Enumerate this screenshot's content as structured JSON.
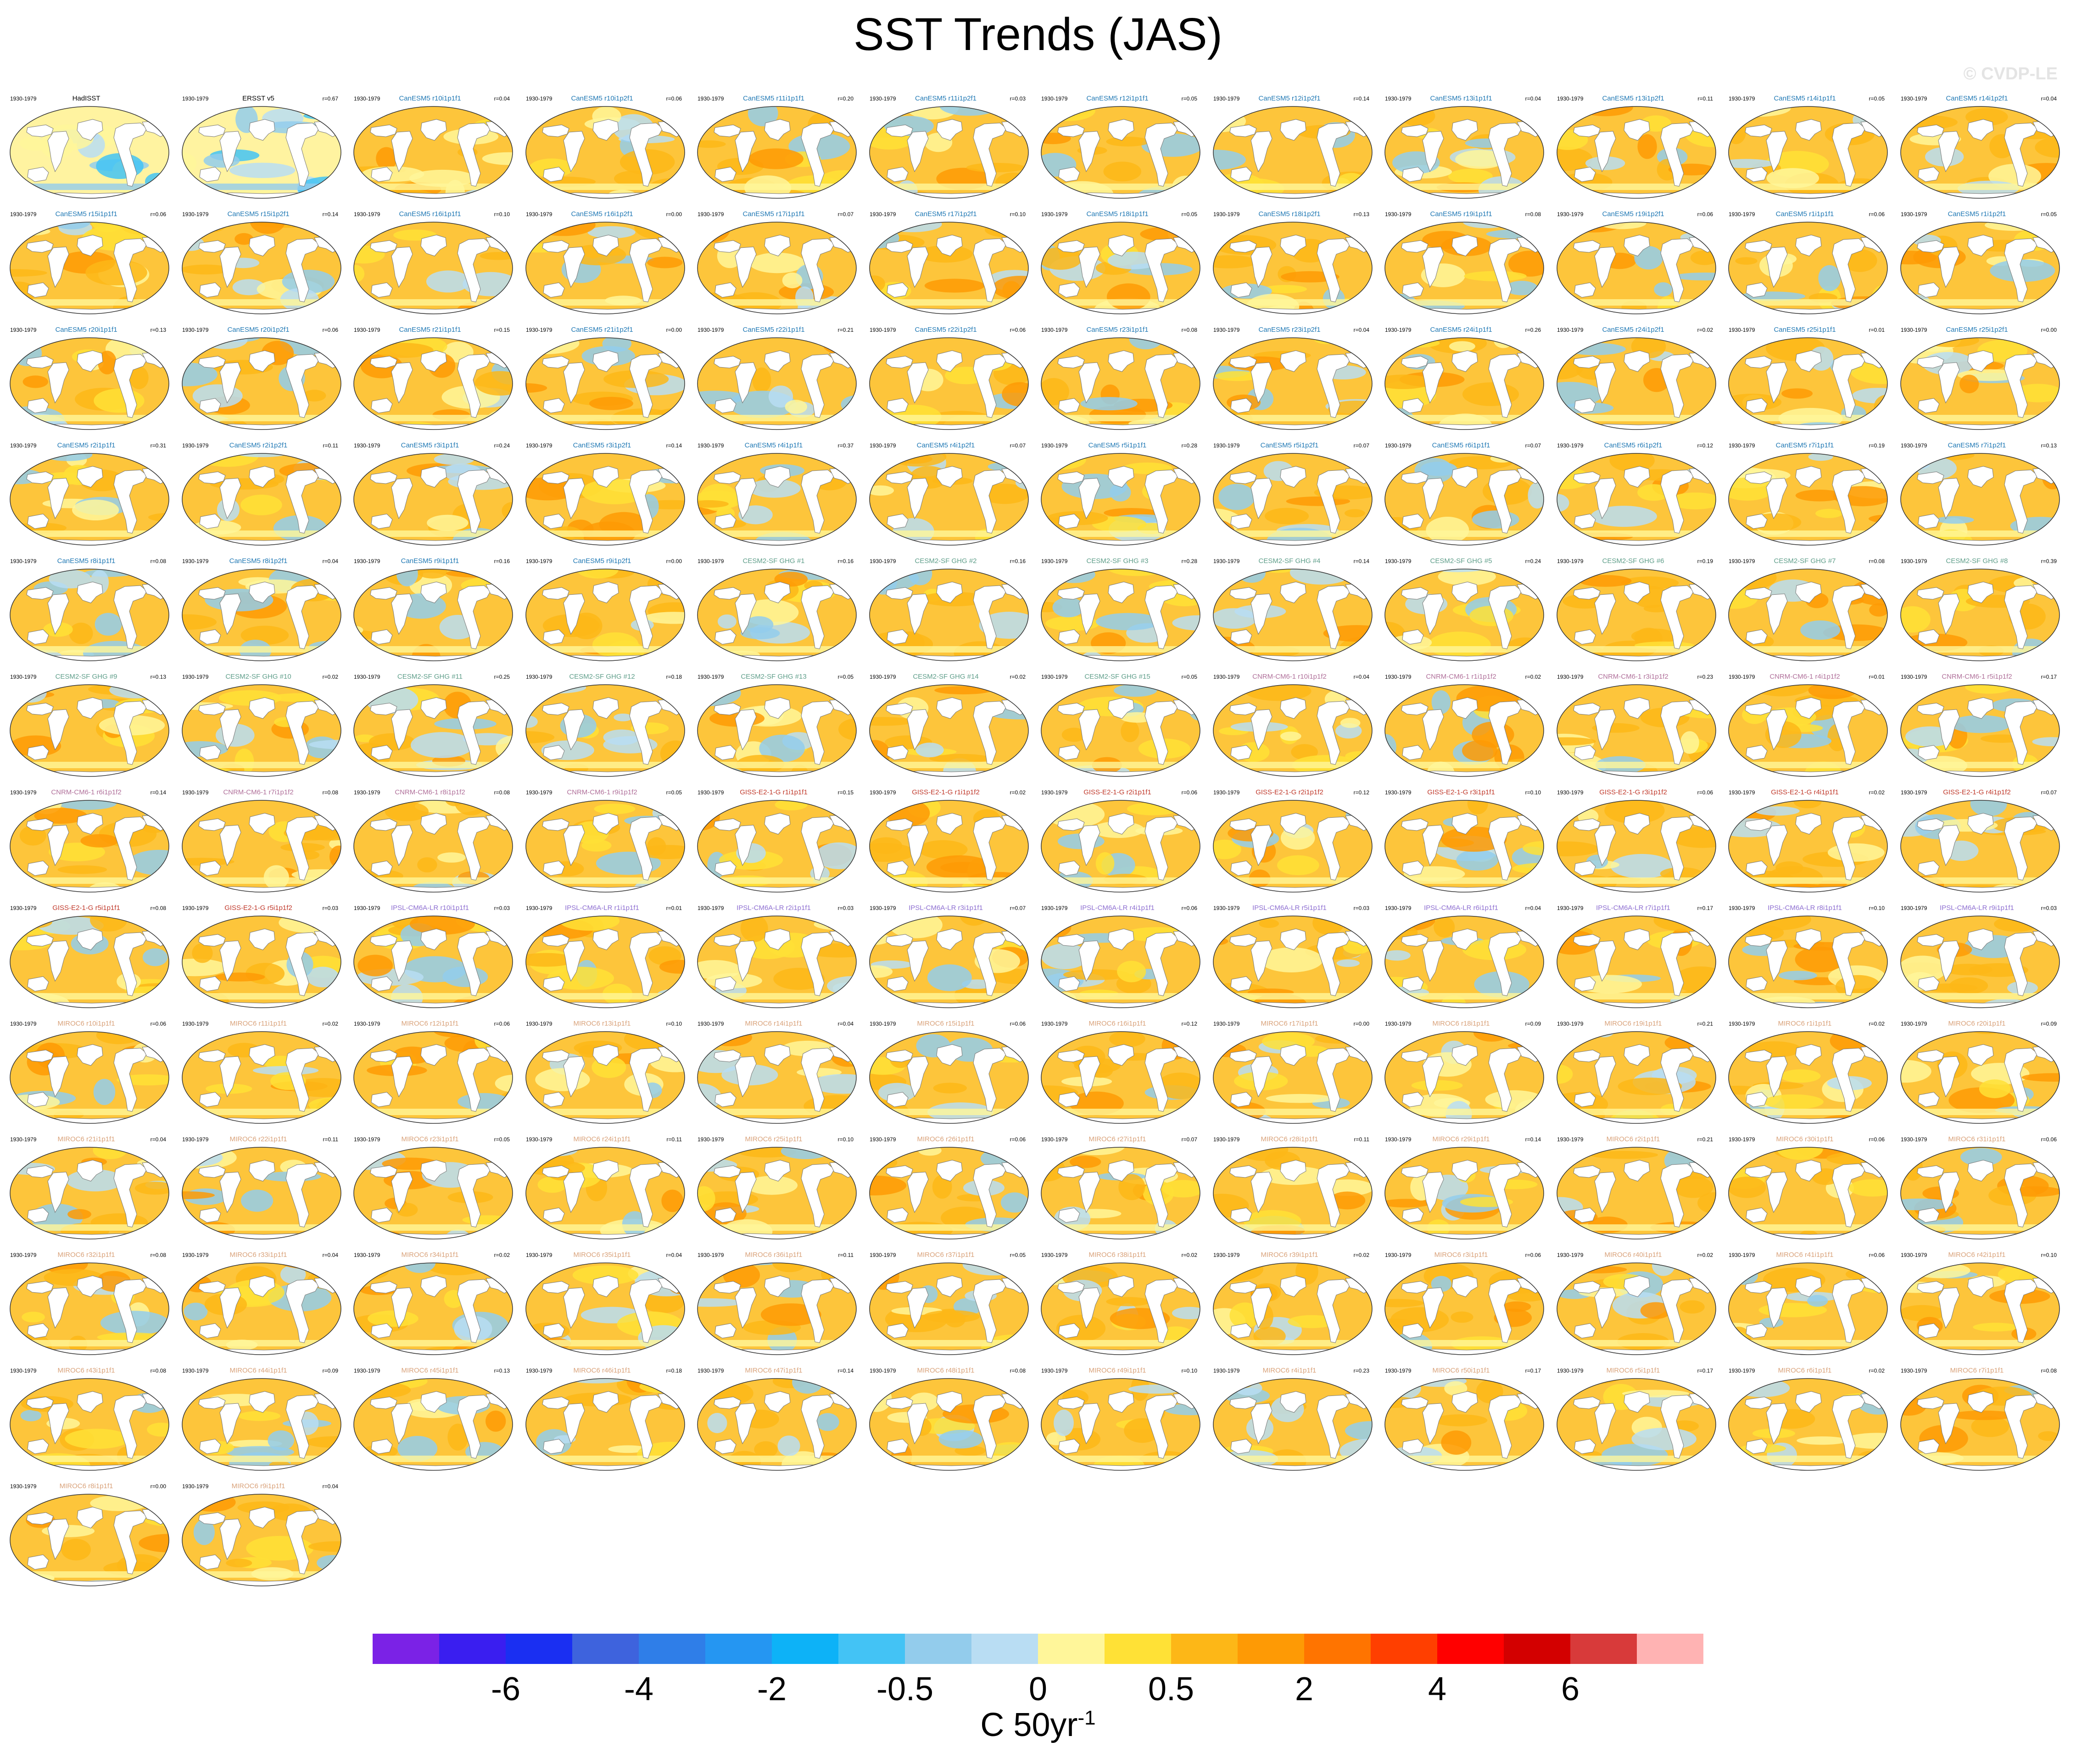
{
  "title": "SST Trends (JAS)",
  "watermark": "© CVDP-LE",
  "period": "1930-1979",
  "colorbar": {
    "labels": [
      "-6",
      "-4",
      "-2",
      "-0.5",
      "0",
      "0.5",
      "2",
      "4",
      "6"
    ],
    "colors": [
      "#7b22e6",
      "#3a1ef0",
      "#1a2ff2",
      "#3e63dd",
      "#2f7ee8",
      "#2596f2",
      "#0db2f7",
      "#43c3f5",
      "#93ccec",
      "#b9ddf3",
      "#fff69a",
      "#ffe136",
      "#fdb717",
      "#fe9a05",
      "#ff7400",
      "#ff3f00",
      "#ff0000",
      "#d30000",
      "#d83a3a",
      "#ffb3b3"
    ],
    "units": "C 50yr",
    "units_sup": "-1"
  },
  "panels": [
    {
      "name": "HadISST",
      "r": "",
      "color": "#000000"
    },
    {
      "name": "ERSST v5",
      "r": "r=0.67",
      "color": "#000000"
    },
    {
      "name": "CanESM5 r10i1p1f1",
      "r": "r=0.04",
      "color": "#1f78b4"
    },
    {
      "name": "CanESM5 r10i1p2f1",
      "r": "r=0.06",
      "color": "#1f78b4"
    },
    {
      "name": "CanESM5 r11i1p1f1",
      "r": "r=0.20",
      "color": "#1f78b4"
    },
    {
      "name": "CanESM5 r11i1p2f1",
      "r": "r=0.03",
      "color": "#1f78b4"
    },
    {
      "name": "CanESM5 r12i1p1f1",
      "r": "r=0.05",
      "color": "#1f78b4"
    },
    {
      "name": "CanESM5 r12i1p2f1",
      "r": "r=0.14",
      "color": "#1f78b4"
    },
    {
      "name": "CanESM5 r13i1p1f1",
      "r": "r=0.04",
      "color": "#1f78b4"
    },
    {
      "name": "CanESM5 r13i1p2f1",
      "r": "r=0.11",
      "color": "#1f78b4"
    },
    {
      "name": "CanESM5 r14i1p1f1",
      "r": "r=0.05",
      "color": "#1f78b4"
    },
    {
      "name": "CanESM5 r14i1p2f1",
      "r": "r=0.04",
      "color": "#1f78b4"
    },
    {
      "name": "CanESM5 r15i1p1f1",
      "r": "r=0.06",
      "color": "#1f78b4"
    },
    {
      "name": "CanESM5 r15i1p2f1",
      "r": "r=0.14",
      "color": "#1f78b4"
    },
    {
      "name": "CanESM5 r16i1p1f1",
      "r": "r=0.10",
      "color": "#1f78b4"
    },
    {
      "name": "CanESM5 r16i1p2f1",
      "r": "r=0.00",
      "color": "#1f78b4"
    },
    {
      "name": "CanESM5 r17i1p1f1",
      "r": "r=0.07",
      "color": "#1f78b4"
    },
    {
      "name": "CanESM5 r17i1p2f1",
      "r": "r=0.10",
      "color": "#1f78b4"
    },
    {
      "name": "CanESM5 r18i1p1f1",
      "r": "r=0.05",
      "color": "#1f78b4"
    },
    {
      "name": "CanESM5 r18i1p2f1",
      "r": "r=0.13",
      "color": "#1f78b4"
    },
    {
      "name": "CanESM5 r19i1p1f1",
      "r": "r=0.08",
      "color": "#1f78b4"
    },
    {
      "name": "CanESM5 r19i1p2f1",
      "r": "r=0.06",
      "color": "#1f78b4"
    },
    {
      "name": "CanESM5 r1i1p1f1",
      "r": "r=0.06",
      "color": "#1f78b4"
    },
    {
      "name": "CanESM5 r1i1p2f1",
      "r": "r=0.05",
      "color": "#1f78b4"
    },
    {
      "name": "CanESM5 r20i1p1f1",
      "r": "r=0.13",
      "color": "#1f78b4"
    },
    {
      "name": "CanESM5 r20i1p2f1",
      "r": "r=0.06",
      "color": "#1f78b4"
    },
    {
      "name": "CanESM5 r21i1p1f1",
      "r": "r=0.15",
      "color": "#1f78b4"
    },
    {
      "name": "CanESM5 r21i1p2f1",
      "r": "r=0.00",
      "color": "#1f78b4"
    },
    {
      "name": "CanESM5 r22i1p1f1",
      "r": "r=0.21",
      "color": "#1f78b4"
    },
    {
      "name": "CanESM5 r22i1p2f1",
      "r": "r=0.06",
      "color": "#1f78b4"
    },
    {
      "name": "CanESM5 r23i1p1f1",
      "r": "r=0.08",
      "color": "#1f78b4"
    },
    {
      "name": "CanESM5 r23i1p2f1",
      "r": "r=0.04",
      "color": "#1f78b4"
    },
    {
      "name": "CanESM5 r24i1p1f1",
      "r": "r=0.26",
      "color": "#1f78b4"
    },
    {
      "name": "CanESM5 r24i1p2f1",
      "r": "r=0.02",
      "color": "#1f78b4"
    },
    {
      "name": "CanESM5 r25i1p1f1",
      "r": "r=0.01",
      "color": "#1f78b4"
    },
    {
      "name": "CanESM5 r25i1p2f1",
      "r": "r=0.00",
      "color": "#1f78b4"
    },
    {
      "name": "CanESM5 r2i1p1f1",
      "r": "r=0.31",
      "color": "#1f78b4"
    },
    {
      "name": "CanESM5 r2i1p2f1",
      "r": "r=0.11",
      "color": "#1f78b4"
    },
    {
      "name": "CanESM5 r3i1p1f1",
      "r": "r=0.24",
      "color": "#1f78b4"
    },
    {
      "name": "CanESM5 r3i1p2f1",
      "r": "r=0.14",
      "color": "#1f78b4"
    },
    {
      "name": "CanESM5 r4i1p1f1",
      "r": "r=0.37",
      "color": "#1f78b4"
    },
    {
      "name": "CanESM5 r4i1p2f1",
      "r": "r=0.07",
      "color": "#1f78b4"
    },
    {
      "name": "CanESM5 r5i1p1f1",
      "r": "r=0.28",
      "color": "#1f78b4"
    },
    {
      "name": "CanESM5 r5i1p2f1",
      "r": "r=0.07",
      "color": "#1f78b4"
    },
    {
      "name": "CanESM5 r6i1p1f1",
      "r": "r=0.07",
      "color": "#1f78b4"
    },
    {
      "name": "CanESM5 r6i1p2f1",
      "r": "r=0.12",
      "color": "#1f78b4"
    },
    {
      "name": "CanESM5 r7i1p1f1",
      "r": "r=0.19",
      "color": "#1f78b4"
    },
    {
      "name": "CanESM5 r7i1p2f1",
      "r": "r=0.13",
      "color": "#1f78b4"
    },
    {
      "name": "CanESM5 r8i1p1f1",
      "r": "r=0.08",
      "color": "#1f78b4"
    },
    {
      "name": "CanESM5 r8i1p2f1",
      "r": "r=0.04",
      "color": "#1f78b4"
    },
    {
      "name": "CanESM5 r9i1p1f1",
      "r": "r=0.16",
      "color": "#1f78b4"
    },
    {
      "name": "CanESM5 r9i1p2f1",
      "r": "r=0.00",
      "color": "#1f78b4"
    },
    {
      "name": "CESM2-SF GHG #1",
      "r": "r=0.16",
      "color": "#5f9e8a"
    },
    {
      "name": "CESM2-SF GHG #2",
      "r": "r=0.16",
      "color": "#5f9e8a"
    },
    {
      "name": "CESM2-SF GHG #3",
      "r": "r=0.28",
      "color": "#5f9e8a"
    },
    {
      "name": "CESM2-SF GHG #4",
      "r": "r=0.14",
      "color": "#5f9e8a"
    },
    {
      "name": "CESM2-SF GHG #5",
      "r": "r=0.24",
      "color": "#5f9e8a"
    },
    {
      "name": "CESM2-SF GHG #6",
      "r": "r=0.19",
      "color": "#5f9e8a"
    },
    {
      "name": "CESM2-SF GHG #7",
      "r": "r=0.08",
      "color": "#5f9e8a"
    },
    {
      "name": "CESM2-SF GHG #8",
      "r": "r=0.39",
      "color": "#5f9e8a"
    },
    {
      "name": "CESM2-SF GHG #9",
      "r": "r=0.13",
      "color": "#5f9e8a"
    },
    {
      "name": "CESM2-SF GHG #10",
      "r": "r=0.02",
      "color": "#5f9e8a"
    },
    {
      "name": "CESM2-SF GHG #11",
      "r": "r=0.25",
      "color": "#5f9e8a"
    },
    {
      "name": "CESM2-SF GHG #12",
      "r": "r=0.18",
      "color": "#5f9e8a"
    },
    {
      "name": "CESM2-SF GHG #13",
      "r": "r=0.05",
      "color": "#5f9e8a"
    },
    {
      "name": "CESM2-SF GHG #14",
      "r": "r=0.02",
      "color": "#5f9e8a"
    },
    {
      "name": "CESM2-SF GHG #15",
      "r": "r=0.05",
      "color": "#5f9e8a"
    },
    {
      "name": "CNRM-CM6-1 r10i1p1f2",
      "r": "r=0.04",
      "color": "#b0709a"
    },
    {
      "name": "CNRM-CM6-1 r1i1p1f2",
      "r": "r=0.02",
      "color": "#b0709a"
    },
    {
      "name": "CNRM-CM6-1 r3i1p1f2",
      "r": "r=0.23",
      "color": "#b0709a"
    },
    {
      "name": "CNRM-CM6-1 r4i1p1f2",
      "r": "r=0.01",
      "color": "#b0709a"
    },
    {
      "name": "CNRM-CM6-1 r5i1p1f2",
      "r": "r=0.17",
      "color": "#b0709a"
    },
    {
      "name": "CNRM-CM6-1 r6i1p1f2",
      "r": "r=0.14",
      "color": "#b0709a"
    },
    {
      "name": "CNRM-CM6-1 r7i1p1f2",
      "r": "r=0.08",
      "color": "#b0709a"
    },
    {
      "name": "CNRM-CM6-1 r8i1p1f2",
      "r": "r=0.08",
      "color": "#b0709a"
    },
    {
      "name": "CNRM-CM6-1 r9i1p1f2",
      "r": "r=0.05",
      "color": "#b0709a"
    },
    {
      "name": "GISS-E2-1-G r1i1p1f1",
      "r": "r=0.15",
      "color": "#c0392b"
    },
    {
      "name": "GISS-E2-1-G r1i1p1f2",
      "r": "r=0.02",
      "color": "#c0392b"
    },
    {
      "name": "GISS-E2-1-G r2i1p1f1",
      "r": "r=0.06",
      "color": "#c0392b"
    },
    {
      "name": "GISS-E2-1-G r2i1p1f2",
      "r": "r=0.12",
      "color": "#c0392b"
    },
    {
      "name": "GISS-E2-1-G r3i1p1f1",
      "r": "r=0.10",
      "color": "#c0392b"
    },
    {
      "name": "GISS-E2-1-G r3i1p1f2",
      "r": "r=0.06",
      "color": "#c0392b"
    },
    {
      "name": "GISS-E2-1-G r4i1p1f1",
      "r": "r=0.02",
      "color": "#c0392b"
    },
    {
      "name": "GISS-E2-1-G r4i1p1f2",
      "r": "r=0.07",
      "color": "#c0392b"
    },
    {
      "name": "GISS-E2-1-G r5i1p1f1",
      "r": "r=0.08",
      "color": "#c0392b"
    },
    {
      "name": "GISS-E2-1-G r5i1p1f2",
      "r": "r=0.03",
      "color": "#c0392b"
    },
    {
      "name": "IPSL-CM6A-LR r10i1p1f1",
      "r": "r=0.03",
      "color": "#8e6fd1"
    },
    {
      "name": "IPSL-CM6A-LR r1i1p1f1",
      "r": "r=0.01",
      "color": "#8e6fd1"
    },
    {
      "name": "IPSL-CM6A-LR r2i1p1f1",
      "r": "r=0.03",
      "color": "#8e6fd1"
    },
    {
      "name": "IPSL-CM6A-LR r3i1p1f1",
      "r": "r=0.07",
      "color": "#8e6fd1"
    },
    {
      "name": "IPSL-CM6A-LR r4i1p1f1",
      "r": "r=0.06",
      "color": "#8e6fd1"
    },
    {
      "name": "IPSL-CM6A-LR r5i1p1f1",
      "r": "r=0.03",
      "color": "#8e6fd1"
    },
    {
      "name": "IPSL-CM6A-LR r6i1p1f1",
      "r": "r=0.04",
      "color": "#8e6fd1"
    },
    {
      "name": "IPSL-CM6A-LR r7i1p1f1",
      "r": "r=0.17",
      "color": "#8e6fd1"
    },
    {
      "name": "IPSL-CM6A-LR r8i1p1f1",
      "r": "r=0.10",
      "color": "#8e6fd1"
    },
    {
      "name": "IPSL-CM6A-LR r9i1p1f1",
      "r": "r=0.03",
      "color": "#8e6fd1"
    },
    {
      "name": "MIROC6 r10i1p1f1",
      "r": "r=0.06",
      "color": "#d9a27a"
    },
    {
      "name": "MIROC6 r11i1p1f1",
      "r": "r=0.02",
      "color": "#d9a27a"
    },
    {
      "name": "MIROC6 r12i1p1f1",
      "r": "r=0.06",
      "color": "#d9a27a"
    },
    {
      "name": "MIROC6 r13i1p1f1",
      "r": "r=0.10",
      "color": "#d9a27a"
    },
    {
      "name": "MIROC6 r14i1p1f1",
      "r": "r=0.04",
      "color": "#d9a27a"
    },
    {
      "name": "MIROC6 r15i1p1f1",
      "r": "r=0.06",
      "color": "#d9a27a"
    },
    {
      "name": "MIROC6 r16i1p1f1",
      "r": "r=0.12",
      "color": "#d9a27a"
    },
    {
      "name": "MIROC6 r17i1p1f1",
      "r": "r=0.00",
      "color": "#d9a27a"
    },
    {
      "name": "MIROC6 r18i1p1f1",
      "r": "r=0.09",
      "color": "#d9a27a"
    },
    {
      "name": "MIROC6 r19i1p1f1",
      "r": "r=0.21",
      "color": "#d9a27a"
    },
    {
      "name": "MIROC6 r1i1p1f1",
      "r": "r=0.02",
      "color": "#d9a27a"
    },
    {
      "name": "MIROC6 r20i1p1f1",
      "r": "r=0.09",
      "color": "#d9a27a"
    },
    {
      "name": "MIROC6 r21i1p1f1",
      "r": "r=0.04",
      "color": "#d9a27a"
    },
    {
      "name": "MIROC6 r22i1p1f1",
      "r": "r=0.11",
      "color": "#d9a27a"
    },
    {
      "name": "MIROC6 r23i1p1f1",
      "r": "r=0.05",
      "color": "#d9a27a"
    },
    {
      "name": "MIROC6 r24i1p1f1",
      "r": "r=0.11",
      "color": "#d9a27a"
    },
    {
      "name": "MIROC6 r25i1p1f1",
      "r": "r=0.10",
      "color": "#d9a27a"
    },
    {
      "name": "MIROC6 r26i1p1f1",
      "r": "r=0.06",
      "color": "#d9a27a"
    },
    {
      "name": "MIROC6 r27i1p1f1",
      "r": "r=0.07",
      "color": "#d9a27a"
    },
    {
      "name": "MIROC6 r28i1p1f1",
      "r": "r=0.11",
      "color": "#d9a27a"
    },
    {
      "name": "MIROC6 r29i1p1f1",
      "r": "r=0.14",
      "color": "#d9a27a"
    },
    {
      "name": "MIROC6 r2i1p1f1",
      "r": "r=0.21",
      "color": "#d9a27a"
    },
    {
      "name": "MIROC6 r30i1p1f1",
      "r": "r=0.06",
      "color": "#d9a27a"
    },
    {
      "name": "MIROC6 r31i1p1f1",
      "r": "r=0.06",
      "color": "#d9a27a"
    },
    {
      "name": "MIROC6 r32i1p1f1",
      "r": "r=0.08",
      "color": "#d9a27a"
    },
    {
      "name": "MIROC6 r33i1p1f1",
      "r": "r=0.04",
      "color": "#d9a27a"
    },
    {
      "name": "MIROC6 r34i1p1f1",
      "r": "r=0.02",
      "color": "#d9a27a"
    },
    {
      "name": "MIROC6 r35i1p1f1",
      "r": "r=0.04",
      "color": "#d9a27a"
    },
    {
      "name": "MIROC6 r36i1p1f1",
      "r": "r=0.11",
      "color": "#d9a27a"
    },
    {
      "name": "MIROC6 r37i1p1f1",
      "r": "r=0.05",
      "color": "#d9a27a"
    },
    {
      "name": "MIROC6 r38i1p1f1",
      "r": "r=0.02",
      "color": "#d9a27a"
    },
    {
      "name": "MIROC6 r39i1p1f1",
      "r": "r=0.02",
      "color": "#d9a27a"
    },
    {
      "name": "MIROC6 r3i1p1f1",
      "r": "r=0.06",
      "color": "#d9a27a"
    },
    {
      "name": "MIROC6 r40i1p1f1",
      "r": "r=0.02",
      "color": "#d9a27a"
    },
    {
      "name": "MIROC6 r41i1p1f1",
      "r": "r=0.06",
      "color": "#d9a27a"
    },
    {
      "name": "MIROC6 r42i1p1f1",
      "r": "r=0.10",
      "color": "#d9a27a"
    },
    {
      "name": "MIROC6 r43i1p1f1",
      "r": "r=0.08",
      "color": "#d9a27a"
    },
    {
      "name": "MIROC6 r44i1p1f1",
      "r": "r=0.09",
      "color": "#d9a27a"
    },
    {
      "name": "MIROC6 r45i1p1f1",
      "r": "r=0.13",
      "color": "#d9a27a"
    },
    {
      "name": "MIROC6 r46i1p1f1",
      "r": "r=0.18",
      "color": "#d9a27a"
    },
    {
      "name": "MIROC6 r47i1p1f1",
      "r": "r=0.14",
      "color": "#d9a27a"
    },
    {
      "name": "MIROC6 r48i1p1f1",
      "r": "r=0.08",
      "color": "#d9a27a"
    },
    {
      "name": "MIROC6 r49i1p1f1",
      "r": "r=0.10",
      "color": "#d9a27a"
    },
    {
      "name": "MIROC6 r4i1p1f1",
      "r": "r=0.23",
      "color": "#d9a27a"
    },
    {
      "name": "MIROC6 r50i1p1f1",
      "r": "r=0.17",
      "color": "#d9a27a"
    },
    {
      "name": "MIROC6 r5i1p1f1",
      "r": "r=0.17",
      "color": "#d9a27a"
    },
    {
      "name": "MIROC6 r6i1p1f1",
      "r": "r=0.02",
      "color": "#d9a27a"
    },
    {
      "name": "MIROC6 r7i1p1f1",
      "r": "r=0.08",
      "color": "#d9a27a"
    },
    {
      "name": "MIROC6 r8i1p1f1",
      "r": "r=0.00",
      "color": "#d9a27a"
    },
    {
      "name": "MIROC6 r9i1p1f1",
      "r": "r=0.04",
      "color": "#d9a27a"
    }
  ]
}
